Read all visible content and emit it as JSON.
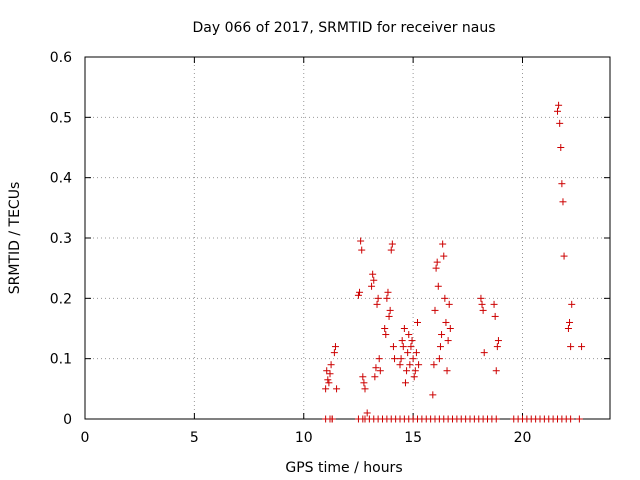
{
  "chart_data": {
    "type": "scatter",
    "title": "Day 066 of 2017, SRMTID for receiver naus",
    "xlabel": "GPS time / hours",
    "ylabel": "SRMTID / TECUs",
    "xlim": [
      0,
      24
    ],
    "ylim": [
      0,
      0.6
    ],
    "xticks": [
      "0",
      "5",
      "10",
      "15",
      "20"
    ],
    "xtick_values": [
      0,
      5,
      10,
      15,
      20
    ],
    "yticks": [
      "0",
      "0.1",
      "0.2",
      "0.3",
      "0.4",
      "0.5",
      "0.6"
    ],
    "ytick_values": [
      0,
      0.1,
      0.2,
      0.3,
      0.4,
      0.5,
      0.6
    ],
    "grid": true,
    "marker": "+",
    "marker_color": "#cc0000",
    "series": [
      {
        "x": [
          11.0,
          11.05,
          11.1,
          11.15,
          11.2,
          11.25,
          11.3,
          11.4,
          11.45,
          11.5,
          12.5,
          12.55,
          12.6,
          12.65,
          12.7,
          12.75,
          12.8,
          12.9,
          13.1,
          13.15,
          13.2,
          13.25,
          13.3,
          13.35,
          13.4,
          13.45,
          13.5,
          13.7,
          13.75,
          13.8,
          13.85,
          13.9,
          13.95,
          14.0,
          14.05,
          14.1,
          14.15,
          14.4,
          14.45,
          14.5,
          14.55,
          14.6,
          14.65,
          14.7,
          14.75,
          14.8,
          14.85,
          14.9,
          14.95,
          15.0,
          15.05,
          15.1,
          15.15,
          15.2,
          15.25,
          15.9,
          15.95,
          16.0,
          16.05,
          16.1,
          16.15,
          16.2,
          16.25,
          16.3,
          16.35,
          16.4,
          16.45,
          16.5,
          16.55,
          16.6,
          16.65,
          16.7,
          18.1,
          18.15,
          18.2,
          18.25,
          18.7,
          18.75,
          18.8,
          18.85,
          18.9,
          21.6,
          21.65,
          21.7,
          21.75,
          21.8,
          21.85,
          21.9,
          22.1,
          22.15,
          22.2,
          22.25,
          22.7
        ],
        "y": [
          0.05,
          0.08,
          0.065,
          0.06,
          0.075,
          0.09,
          0.0,
          0.11,
          0.12,
          0.05,
          0.205,
          0.21,
          0.295,
          0.28,
          0.07,
          0.06,
          0.05,
          0.01,
          0.22,
          0.24,
          0.23,
          0.07,
          0.085,
          0.19,
          0.2,
          0.1,
          0.08,
          0.15,
          0.14,
          0.2,
          0.21,
          0.17,
          0.18,
          0.28,
          0.29,
          0.12,
          0.1,
          0.09,
          0.1,
          0.13,
          0.12,
          0.15,
          0.06,
          0.08,
          0.11,
          0.14,
          0.09,
          0.12,
          0.13,
          0.1,
          0.07,
          0.08,
          0.11,
          0.16,
          0.09,
          0.04,
          0.09,
          0.18,
          0.25,
          0.26,
          0.22,
          0.1,
          0.12,
          0.14,
          0.29,
          0.27,
          0.2,
          0.16,
          0.08,
          0.13,
          0.19,
          0.15,
          0.2,
          0.19,
          0.18,
          0.11,
          0.19,
          0.17,
          0.08,
          0.12,
          0.13,
          0.51,
          0.52,
          0.49,
          0.45,
          0.39,
          0.36,
          0.27,
          0.15,
          0.16,
          0.12,
          0.19,
          0.12
        ],
        "zeros_x": [
          11.0,
          11.2,
          11.3,
          12.5,
          12.7,
          12.8,
          13.0,
          13.2,
          13.4,
          13.6,
          13.8,
          14.0,
          14.2,
          14.4,
          14.6,
          14.8,
          15.0,
          15.2,
          15.4,
          15.6,
          15.8,
          16.0,
          16.2,
          16.4,
          16.6,
          16.8,
          17.0,
          17.2,
          17.4,
          17.6,
          17.8,
          18.0,
          18.2,
          18.4,
          18.6,
          18.8,
          19.6,
          19.8,
          20.0,
          20.2,
          20.4,
          20.6,
          20.8,
          21.0,
          21.2,
          21.4,
          21.6,
          21.8,
          22.0,
          22.2,
          22.6
        ]
      }
    ]
  }
}
